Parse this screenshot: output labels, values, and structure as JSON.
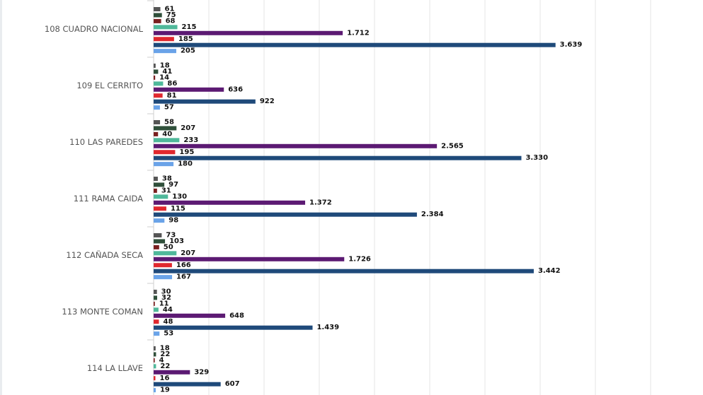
{
  "chart_data": {
    "type": "bar",
    "orientation": "horizontal",
    "categories": [
      "108 CUADRO NACIONAL",
      "109 EL CERRITO",
      "110 LAS PAREDES",
      "111 RAMA CAIDA",
      "112 CAÑADA SECA",
      "113 MONTE COMAN",
      "114 LA LLAVE"
    ],
    "series": [
      {
        "color": "#555555",
        "values": [
          61,
          18,
          58,
          38,
          73,
          30,
          18
        ],
        "labels": [
          "61",
          "18",
          "58",
          "38",
          "73",
          "30",
          "18"
        ]
      },
      {
        "color": "#2f4f3a",
        "values": [
          75,
          41,
          207,
          97,
          103,
          32,
          22
        ],
        "labels": [
          "75",
          "41",
          "207",
          "97",
          "103",
          "32",
          "22"
        ]
      },
      {
        "color": "#7a1f1f",
        "values": [
          68,
          14,
          40,
          31,
          50,
          11,
          4
        ],
        "labels": [
          "68",
          "14",
          "40",
          "31",
          "50",
          "11",
          "4"
        ]
      },
      {
        "color": "#4fb89a",
        "values": [
          215,
          86,
          233,
          130,
          207,
          44,
          22
        ],
        "labels": [
          "215",
          "86",
          "233",
          "130",
          "207",
          "44",
          "22"
        ]
      },
      {
        "color": "#5c1a73",
        "values": [
          1712,
          636,
          2565,
          1372,
          1726,
          648,
          329
        ],
        "labels": [
          "1.712",
          "636",
          "2.565",
          "1.372",
          "1.726",
          "648",
          "329"
        ]
      },
      {
        "color": "#e0282e",
        "values": [
          185,
          81,
          195,
          115,
          166,
          48,
          16
        ],
        "labels": [
          "185",
          "81",
          "195",
          "115",
          "166",
          "48",
          "16"
        ]
      },
      {
        "color": "#1f4a7a",
        "values": [
          3639,
          922,
          3330,
          2384,
          3442,
          1439,
          607
        ],
        "labels": [
          "3.639",
          "922",
          "3.330",
          "2.384",
          "3.442",
          "1.439",
          "607"
        ]
      },
      {
        "color": "#6aa3e8",
        "values": [
          205,
          57,
          180,
          98,
          167,
          53,
          19
        ],
        "labels": [
          "205",
          "57",
          "180",
          "98",
          "167",
          "53",
          "19"
        ]
      }
    ],
    "xlim": [
      0,
      10000
    ],
    "grid": true,
    "gridline_step": 500
  }
}
